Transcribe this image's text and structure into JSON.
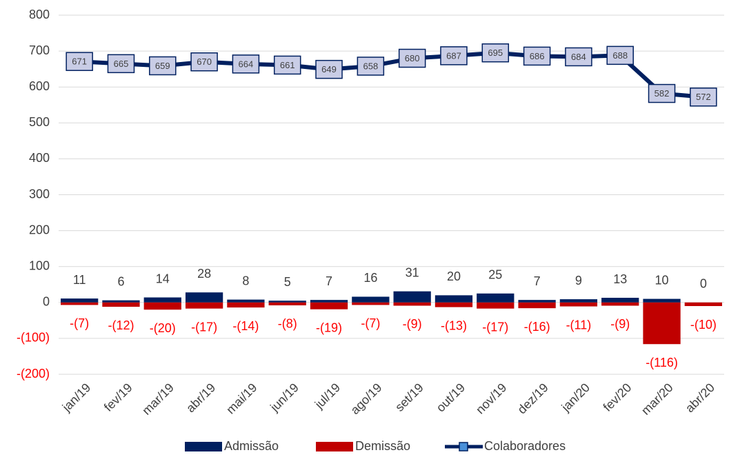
{
  "chart_data": {
    "type": "bar",
    "categories": [
      "jan/19",
      "fev/19",
      "mar/19",
      "abr/19",
      "mai/19",
      "jun/19",
      "jul/19",
      "ago/19",
      "set/19",
      "out/19",
      "nov/19",
      "dez/19",
      "jan/20",
      "fev/20",
      "mar/20",
      "abr/20"
    ],
    "series": [
      {
        "name": "Admissão",
        "type": "bar",
        "color": "#002060",
        "values": [
          11,
          6,
          14,
          28,
          8,
          5,
          7,
          16,
          31,
          20,
          25,
          7,
          9,
          13,
          10,
          0
        ]
      },
      {
        "name": "Demissão",
        "type": "bar",
        "color": "#c00000",
        "values": [
          -7,
          -12,
          -20,
          -17,
          -14,
          -8,
          -19,
          -7,
          -9,
          -13,
          -17,
          -16,
          -11,
          -9,
          -116,
          -10
        ],
        "value_labels": [
          "-(7)",
          "-(12)",
          "-(20)",
          "-(17)",
          "-(14)",
          "-(8)",
          "-(19)",
          "-(7)",
          "-(9)",
          "-(13)",
          "-(17)",
          "-(16)",
          "-(11)",
          "-(9)",
          "-(116)",
          "-(10)"
        ]
      },
      {
        "name": "Colaboradores",
        "type": "line",
        "color": "#002060",
        "marker_fill": "#c9cde6",
        "values": [
          671,
          665,
          659,
          670,
          664,
          661,
          649,
          658,
          680,
          687,
          695,
          686,
          684,
          688,
          582,
          572
        ]
      }
    ],
    "ylim": [
      -200,
      800
    ],
    "yticks": [
      {
        "value": -200,
        "label": "-(200)"
      },
      {
        "value": -100,
        "label": "-(100)"
      },
      0,
      100,
      200,
      300,
      400,
      500,
      600,
      700,
      800
    ],
    "negative_label_color": "#ff0000",
    "grid": true,
    "legend": "bottom"
  }
}
